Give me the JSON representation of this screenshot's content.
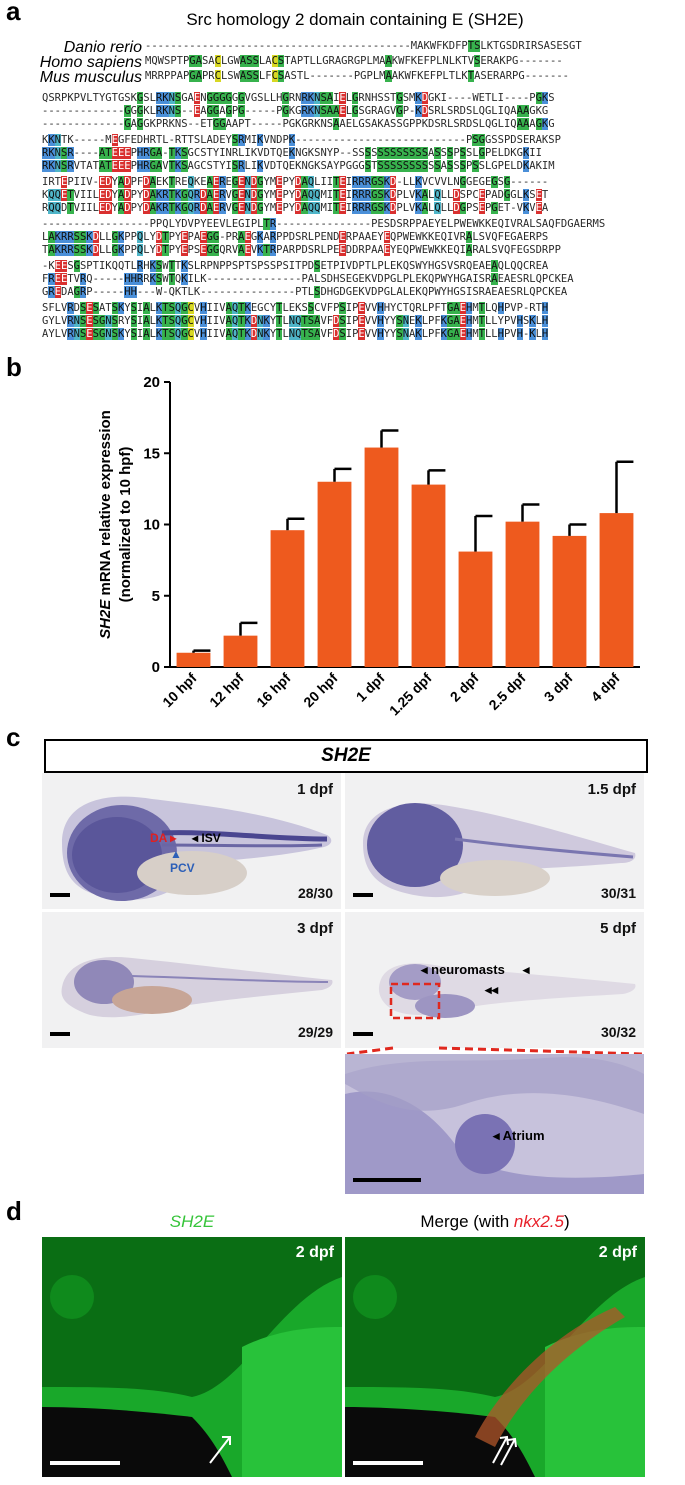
{
  "panel_labels": {
    "a": "a",
    "b": "b",
    "c": "c",
    "d": "d"
  },
  "alignment": {
    "title": "Src homology 2 domain containing E (SH2E)",
    "species": [
      "Danio rerio",
      "Homo sapiens",
      "Mus musculus"
    ],
    "blocks": [
      [
        "------------------------------------------MAKWFKDFPTSLKTGSDRIRSASESGT",
        "MQWSPTPGASACLGWASSLACSTAPTLLGRAGRGPLMAAKWFKEFPLNLKTVSERAKPG-------",
        "MRRPPAPGAPRCLSWASSLFCSASTL-------PGPLMAAKWFKEFPLTLKTASERARPG-------"
      ],
      [
        "QSRPKPVLTYGTGSKGSLRKNSGAENGGGGGGVGSLLHGRNRKNSAIELGRNHSSTGSMKDGKI----WETLI----PGKS",
        "-------------GGGKLRKNS--EAGGAGPG-----PGKGRKNSAAELGSGRAGVGP-KDSRLSRDSLQGLIQAAAGKG",
        "-------------GAGGKPRKNS--ETGGAAPT-----PGKGRKNSAAELGSAKASSGPPKDSRLSRDSLQGLIQAAAGKG"
      ],
      [
        "KKNTK-----MEGFEDHRTL-RTTSLADEYSRMIKVNDPK---------------------------PSGGSSPDSERAKSP",
        "RKNSR----ATEEEPHRGA-TKSGCSTYINRLIKVDTQEKNGKSNYP--SSSSSSSSSSSSASSSPSSLGPELDKGKII",
        "RKNSRVTATATEEEPHRGAVTKSAGCSTYISRLIKVDTQEKNGKSAYPGGGSTSSSSSSSSSSASSSPSSLGPELDKAKIM"
      ],
      [
        "IRTEPIIV-EDYADPFDAEKTREQKEAEREGENDGYMEPYDAQLIITEIRRRGSKD-LLKVCVVLNGGEGEGSG------",
        "KQQETVIILEDYADPYDAKRTKGQRDAERVGENDGYMEPYDAQQMITEIRRRGSKDPLVKALQLLDSPCEPADGGLKSET",
        "RQQDTVIILEDYADPYDAKRTKGQRDAERVGENDGYMEPYDAQQMITEIRRRGSKDPLVKALQLLDGPSEPGET-VKVEA"
      ],
      [
        "-----------------PPQLYDVPYEEVLEGIPLTR---------------PESDSRPPAEYELPWEWKKEQIVRALSAQFDGAERMS",
        "LAKRRSSKDLLGKPPQLYDTPYEPAEGG-PRAEGKARPPDSRLPENDERPAAEYEQPWEWKKEQIVRALSVQFEGAERPS",
        "TAKRRSSKDLLGKPPQLYDTPYEPSEGGQRVAEVKTRPARPDSRLPEEDDRPAAEYEQPWEWKKEQIARALSVQFEGSDRPP"
      ],
      [
        "-KEESGSPTIKQQTLRHKSWTTKSLRPNPPSPTSPSSPSITPDSETPIVDPTLPLEKQSWYHGSVSRQEAEAQLQQCREA",
        "FREETVRQ-----HHRRKSWTQKILK---------------PALSDHSEGEKVDPGLPLEKQPWYHGAISRAEAESRLQPCKEA",
        "GREDAGRP-----HH---W-QKTLK---------------PTLSDHGDGEKVDPGLALEKQPWYHGSISRAEAESRLQPCKEA"
      ],
      [
        "SFLVRDSESATSKYSIALKTSQGCVHIIVAQTKEGCYTLEKSSCVFPSIPEVVHHYCTQRLPFTGAEHMTLQHPVP-RTH",
        "GYLVRNSESGNSRYSIALKTSQGCVHIIVAQTKDNKYTLNQTSAVFDSIPEVVHYYSNEKLPFKGAEHMTLLYPVHSKLH",
        "AYLVRNSESGNSKYSIALKTSQGCVHIIVAQTKDNKYTLNQTSAVFDSIPEVVHYYSNAKLPFKGAEHMTLLHPVH-KLH"
      ]
    ]
  },
  "chart_data": {
    "type": "bar",
    "ylabel_gene": "SH2E",
    "ylabel_rest": " mRNA relative expression",
    "ylabel_line2": "(normalized to 10 hpf)",
    "categories": [
      "10 hpf",
      "12 hpf",
      "16 hpf",
      "20 hpf",
      "1 dpf",
      "1.25 dpf",
      "2 dpf",
      "2.5 dpf",
      "3 dpf",
      "4 dpf"
    ],
    "values": [
      1.0,
      2.2,
      9.6,
      13.0,
      15.4,
      12.8,
      8.1,
      10.2,
      9.2,
      10.8
    ],
    "errors": [
      0.15,
      0.9,
      0.8,
      0.9,
      1.2,
      1.0,
      2.5,
      1.2,
      0.8,
      3.6
    ],
    "yticks": [
      0,
      5,
      10,
      15,
      20
    ],
    "ylim": [
      0,
      20
    ],
    "bar_color": "#ee5a1e"
  },
  "panel_c": {
    "header": "SH2E",
    "images": [
      {
        "stage": "1 dpf",
        "count": "28/30",
        "labels": {
          "da": "DA",
          "isv": "ISV",
          "pcv": "PCV"
        }
      },
      {
        "stage": "1.5 dpf",
        "count": "30/31"
      },
      {
        "stage": "3 dpf",
        "count": "29/29"
      },
      {
        "stage": "5 dpf",
        "count": "30/32",
        "labels": {
          "neuromasts": "neuromasts"
        }
      }
    ],
    "inset_label": "Atrium",
    "colors": {
      "da": "#e02020",
      "pcv": "#2c5fb8",
      "inset": "#e0281e"
    }
  },
  "panel_d": {
    "left_title": "SH2E",
    "right_title_prefix": "Merge (with ",
    "right_title_gene": "nkx2.5",
    "right_title_suffix": ")",
    "left_stage": "2 dpf",
    "right_stage": "2 dpf",
    "colors": {
      "green": "#36c43a",
      "red": "#e8202a"
    }
  }
}
